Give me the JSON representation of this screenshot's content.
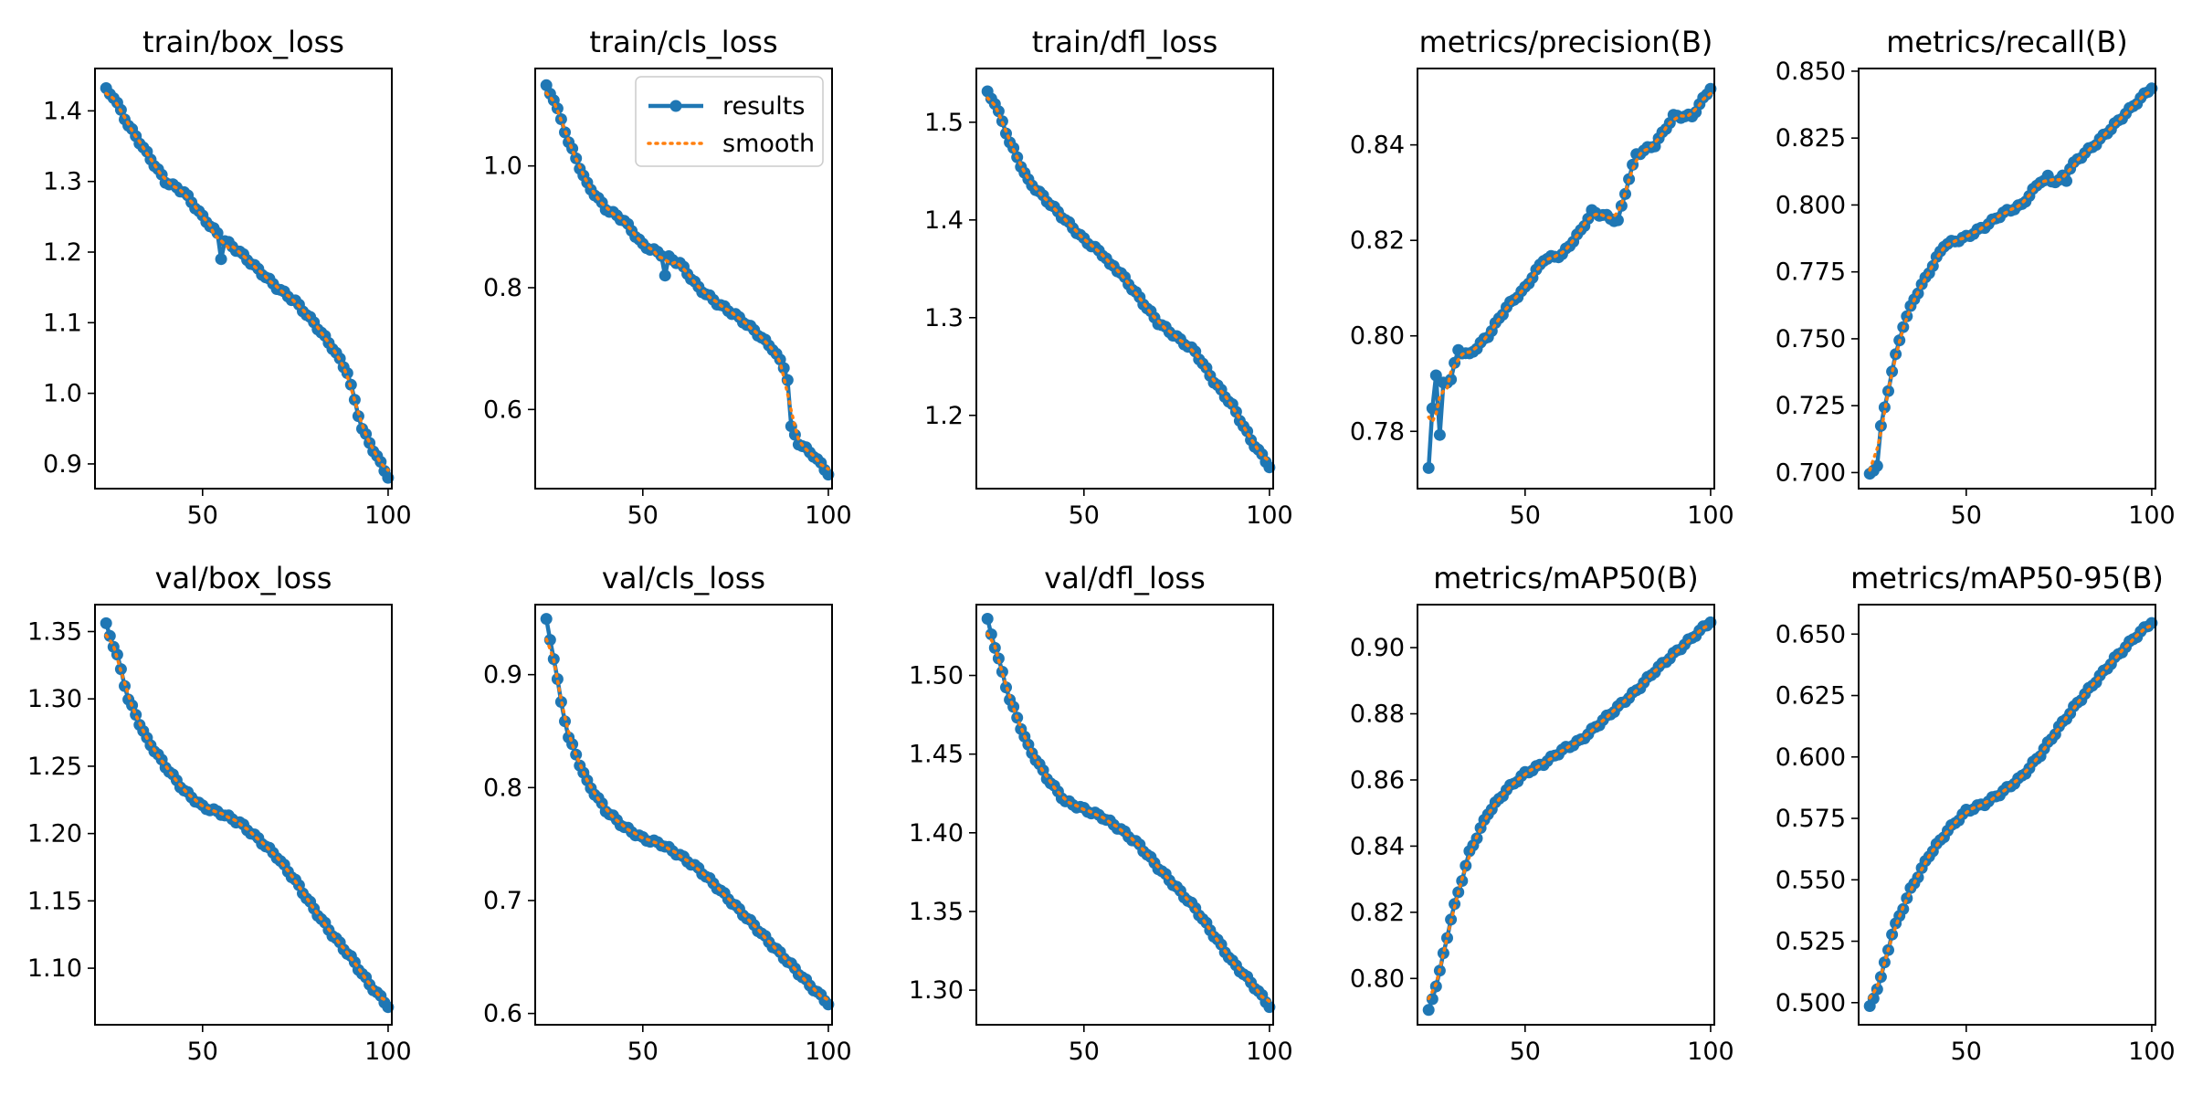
{
  "colors": {
    "results": "#1f77b4",
    "smooth": "#ff7f0e"
  },
  "legend": {
    "entries": [
      "results",
      "smooth"
    ],
    "placement": "top-right",
    "panel": 1
  },
  "chart_data": [
    {
      "type": "line",
      "title": "train/box_loss",
      "xlim": [
        21,
        101
      ],
      "ylim": [
        0.865,
        1.46
      ],
      "xticks": [
        50,
        100
      ],
      "yticks": [
        0.9,
        1.0,
        1.1,
        1.2,
        1.3,
        1.4
      ],
      "ytick_labels": [
        "0.9",
        "1.0",
        "1.1",
        "1.2",
        "1.3",
        "1.4"
      ],
      "anchors": [
        [
          24,
          1.43
        ],
        [
          26,
          1.42
        ],
        [
          30,
          1.38
        ],
        [
          35,
          1.34
        ],
        [
          40,
          1.3
        ],
        [
          45,
          1.285
        ],
        [
          50,
          1.25
        ],
        [
          55,
          1.22
        ],
        [
          60,
          1.2
        ],
        [
          65,
          1.175
        ],
        [
          70,
          1.15
        ],
        [
          75,
          1.13
        ],
        [
          80,
          1.1
        ],
        [
          85,
          1.065
        ],
        [
          89,
          1.03
        ],
        [
          91,
          0.99
        ],
        [
          93,
          0.95
        ],
        [
          96,
          0.92
        ],
        [
          100,
          0.882
        ]
      ],
      "anomalies": [
        [
          55,
          1.19
        ]
      ]
    },
    {
      "type": "line",
      "title": "train/cls_loss",
      "xlim": [
        21,
        101
      ],
      "ylim": [
        0.47,
        1.16
      ],
      "xticks": [
        50,
        100
      ],
      "yticks": [
        0.6,
        0.8,
        1.0
      ],
      "ytick_labels": [
        "0.6",
        "0.8",
        "1.0"
      ],
      "anchors": [
        [
          24,
          1.13
        ],
        [
          26,
          1.11
        ],
        [
          30,
          1.04
        ],
        [
          35,
          0.97
        ],
        [
          40,
          0.93
        ],
        [
          45,
          0.91
        ],
        [
          50,
          0.87
        ],
        [
          55,
          0.855
        ],
        [
          60,
          0.84
        ],
        [
          65,
          0.8
        ],
        [
          70,
          0.775
        ],
        [
          75,
          0.755
        ],
        [
          80,
          0.73
        ],
        [
          85,
          0.7
        ],
        [
          88,
          0.67
        ],
        [
          89,
          0.65
        ],
        [
          90,
          0.57
        ],
        [
          92,
          0.545
        ],
        [
          96,
          0.525
        ],
        [
          100,
          0.495
        ]
      ],
      "anomalies": [
        [
          56,
          0.82
        ]
      ]
    },
    {
      "type": "line",
      "title": "train/dfl_loss",
      "xlim": [
        21,
        101
      ],
      "ylim": [
        1.125,
        1.555
      ],
      "xticks": [
        50,
        100
      ],
      "yticks": [
        1.2,
        1.3,
        1.4,
        1.5
      ],
      "ytick_labels": [
        "1.2",
        "1.3",
        "1.4",
        "1.5"
      ],
      "anchors": [
        [
          24,
          1.53
        ],
        [
          26,
          1.52
        ],
        [
          30,
          1.48
        ],
        [
          35,
          1.44
        ],
        [
          40,
          1.42
        ],
        [
          45,
          1.4
        ],
        [
          50,
          1.38
        ],
        [
          55,
          1.365
        ],
        [
          60,
          1.345
        ],
        [
          65,
          1.32
        ],
        [
          70,
          1.295
        ],
        [
          75,
          1.28
        ],
        [
          80,
          1.265
        ],
        [
          85,
          1.235
        ],
        [
          90,
          1.21
        ],
        [
          95,
          1.175
        ],
        [
          100,
          1.148
        ]
      ],
      "anomalies": [
        [
          57,
          1.355
        ]
      ]
    },
    {
      "type": "line",
      "title": "metrics/precision(B)",
      "xlim": [
        21,
        101
      ],
      "ylim": [
        0.768,
        0.856
      ],
      "xticks": [
        50,
        100
      ],
      "yticks": [
        0.78,
        0.8,
        0.82,
        0.84
      ],
      "ytick_labels": [
        "0.78",
        "0.80",
        "0.82",
        "0.84"
      ],
      "anchors": [
        [
          24,
          0.772
        ],
        [
          25,
          0.785
        ],
        [
          26,
          0.792
        ],
        [
          27,
          0.779
        ],
        [
          28,
          0.79
        ],
        [
          30,
          0.791
        ],
        [
          32,
          0.797
        ],
        [
          35,
          0.796
        ],
        [
          40,
          0.8
        ],
        [
          45,
          0.806
        ],
        [
          50,
          0.81
        ],
        [
          55,
          0.816
        ],
        [
          60,
          0.817
        ],
        [
          65,
          0.822
        ],
        [
          68,
          0.826
        ],
        [
          72,
          0.825
        ],
        [
          75,
          0.824
        ],
        [
          78,
          0.833
        ],
        [
          80,
          0.838
        ],
        [
          85,
          0.84
        ],
        [
          90,
          0.846
        ],
        [
          95,
          0.846
        ],
        [
          100,
          0.852
        ]
      ],
      "anomalies": []
    },
    {
      "type": "line",
      "title": "metrics/recall(B)",
      "xlim": [
        21,
        101
      ],
      "ylim": [
        0.694,
        0.851
      ],
      "xticks": [
        50,
        100
      ],
      "yticks": [
        0.7,
        0.725,
        0.75,
        0.775,
        0.8,
        0.825,
        0.85
      ],
      "ytick_labels": [
        "0.700",
        "0.725",
        "0.750",
        "0.775",
        "0.800",
        "0.825",
        "0.850"
      ],
      "anchors": [
        [
          24,
          0.699
        ],
        [
          26,
          0.703
        ],
        [
          27,
          0.717
        ],
        [
          30,
          0.738
        ],
        [
          33,
          0.755
        ],
        [
          36,
          0.765
        ],
        [
          40,
          0.775
        ],
        [
          44,
          0.785
        ],
        [
          50,
          0.788
        ],
        [
          55,
          0.792
        ],
        [
          60,
          0.797
        ],
        [
          65,
          0.8
        ],
        [
          70,
          0.809
        ],
        [
          75,
          0.809
        ],
        [
          80,
          0.817
        ],
        [
          85,
          0.823
        ],
        [
          90,
          0.83
        ],
        [
          95,
          0.837
        ],
        [
          100,
          0.844
        ]
      ],
      "anomalies": [
        [
          72,
          0.811
        ],
        [
          77,
          0.809
        ]
      ]
    },
    {
      "type": "line",
      "title": "val/box_loss",
      "xlim": [
        21,
        101
      ],
      "ylim": [
        1.058,
        1.37
      ],
      "xticks": [
        50,
        100
      ],
      "yticks": [
        1.1,
        1.15,
        1.2,
        1.25,
        1.3,
        1.35
      ],
      "ytick_labels": [
        "1.10",
        "1.15",
        "1.20",
        "1.25",
        "1.30",
        "1.35"
      ],
      "anchors": [
        [
          24,
          1.355
        ],
        [
          27,
          1.332
        ],
        [
          30,
          1.3
        ],
        [
          35,
          1.27
        ],
        [
          40,
          1.25
        ],
        [
          45,
          1.232
        ],
        [
          50,
          1.22
        ],
        [
          55,
          1.215
        ],
        [
          60,
          1.208
        ],
        [
          65,
          1.196
        ],
        [
          70,
          1.183
        ],
        [
          75,
          1.165
        ],
        [
          80,
          1.144
        ],
        [
          85,
          1.125
        ],
        [
          90,
          1.108
        ],
        [
          95,
          1.088
        ],
        [
          100,
          1.072
        ]
      ],
      "anomalies": []
    },
    {
      "type": "line",
      "title": "val/cls_loss",
      "xlim": [
        21,
        101
      ],
      "ylim": [
        0.59,
        0.962
      ],
      "xticks": [
        50,
        100
      ],
      "yticks": [
        0.6,
        0.7,
        0.8,
        0.9
      ],
      "ytick_labels": [
        "0.6",
        "0.7",
        "0.8",
        "0.9"
      ],
      "anchors": [
        [
          24,
          0.948
        ],
        [
          26,
          0.915
        ],
        [
          28,
          0.875
        ],
        [
          30,
          0.845
        ],
        [
          35,
          0.805
        ],
        [
          40,
          0.78
        ],
        [
          45,
          0.765
        ],
        [
          50,
          0.755
        ],
        [
          55,
          0.75
        ],
        [
          60,
          0.74
        ],
        [
          65,
          0.728
        ],
        [
          70,
          0.712
        ],
        [
          75,
          0.695
        ],
        [
          80,
          0.678
        ],
        [
          85,
          0.66
        ],
        [
          90,
          0.643
        ],
        [
          95,
          0.625
        ],
        [
          100,
          0.609
        ]
      ],
      "anomalies": []
    },
    {
      "type": "line",
      "title": "val/dfl_loss",
      "xlim": [
        21,
        101
      ],
      "ylim": [
        1.278,
        1.545
      ],
      "xticks": [
        50,
        100
      ],
      "yticks": [
        1.3,
        1.35,
        1.4,
        1.45,
        1.5
      ],
      "ytick_labels": [
        "1.30",
        "1.35",
        "1.40",
        "1.45",
        "1.50"
      ],
      "anchors": [
        [
          24,
          1.535
        ],
        [
          27,
          1.51
        ],
        [
          30,
          1.485
        ],
        [
          35,
          1.455
        ],
        [
          40,
          1.435
        ],
        [
          45,
          1.42
        ],
        [
          50,
          1.415
        ],
        [
          55,
          1.41
        ],
        [
          60,
          1.402
        ],
        [
          65,
          1.392
        ],
        [
          70,
          1.378
        ],
        [
          75,
          1.365
        ],
        [
          80,
          1.352
        ],
        [
          85,
          1.335
        ],
        [
          90,
          1.318
        ],
        [
          95,
          1.305
        ],
        [
          100,
          1.29
        ]
      ],
      "anomalies": []
    },
    {
      "type": "line",
      "title": "metrics/mAP50(B)",
      "xlim": [
        21,
        101
      ],
      "ylim": [
        0.786,
        0.913
      ],
      "xticks": [
        50,
        100
      ],
      "yticks": [
        0.8,
        0.82,
        0.84,
        0.86,
        0.88,
        0.9
      ],
      "ytick_labels": [
        "0.80",
        "0.82",
        "0.84",
        "0.86",
        "0.88",
        "0.90"
      ],
      "anchors": [
        [
          24,
          0.79
        ],
        [
          27,
          0.802
        ],
        [
          30,
          0.818
        ],
        [
          35,
          0.838
        ],
        [
          40,
          0.85
        ],
        [
          45,
          0.857
        ],
        [
          50,
          0.862
        ],
        [
          55,
          0.865
        ],
        [
          60,
          0.869
        ],
        [
          65,
          0.872
        ],
        [
          70,
          0.877
        ],
        [
          75,
          0.882
        ],
        [
          80,
          0.887
        ],
        [
          85,
          0.893
        ],
        [
          90,
          0.898
        ],
        [
          95,
          0.903
        ],
        [
          100,
          0.908
        ]
      ],
      "anomalies": []
    },
    {
      "type": "line",
      "title": "metrics/mAP50-95(B)",
      "xlim": [
        21,
        101
      ],
      "ylim": [
        0.491,
        0.662
      ],
      "xticks": [
        50,
        100
      ],
      "yticks": [
        0.5,
        0.525,
        0.55,
        0.575,
        0.6,
        0.625,
        0.65
      ],
      "ytick_labels": [
        "0.500",
        "0.525",
        "0.550",
        "0.575",
        "0.600",
        "0.625",
        "0.650"
      ],
      "anchors": [
        [
          24,
          0.498
        ],
        [
          27,
          0.51
        ],
        [
          30,
          0.528
        ],
        [
          35,
          0.546
        ],
        [
          40,
          0.56
        ],
        [
          45,
          0.57
        ],
        [
          50,
          0.578
        ],
        [
          55,
          0.581
        ],
        [
          60,
          0.586
        ],
        [
          65,
          0.592
        ],
        [
          70,
          0.601
        ],
        [
          75,
          0.612
        ],
        [
          80,
          0.622
        ],
        [
          85,
          0.631
        ],
        [
          90,
          0.64
        ],
        [
          95,
          0.648
        ],
        [
          100,
          0.655
        ]
      ],
      "anomalies": []
    }
  ]
}
